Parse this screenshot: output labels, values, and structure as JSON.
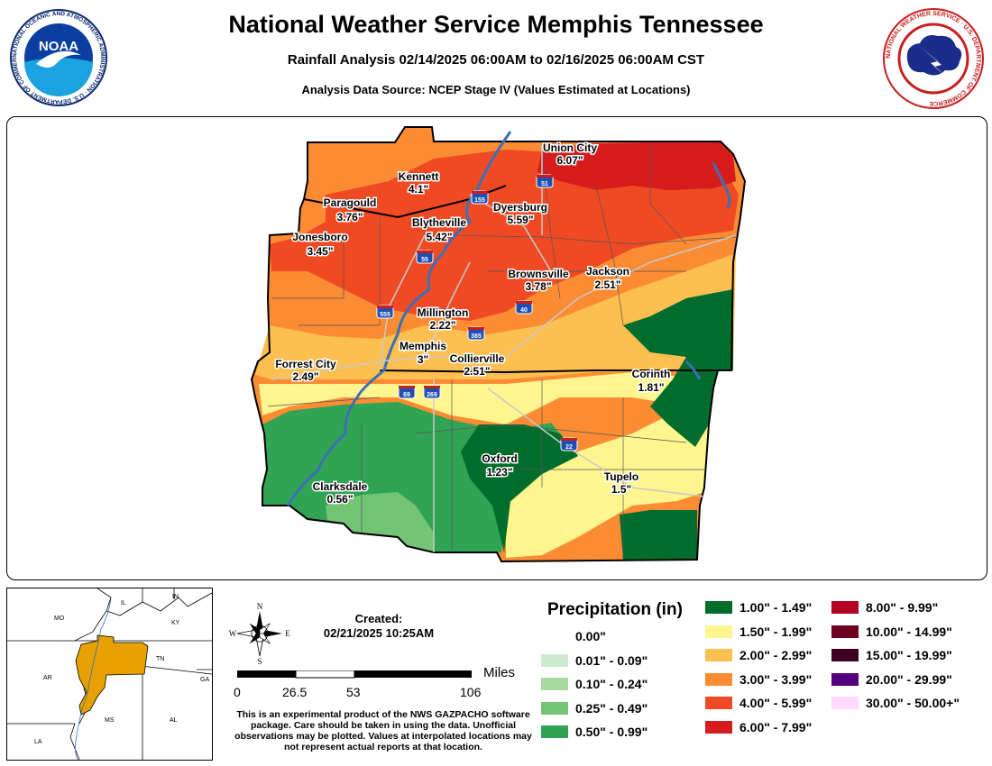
{
  "header": {
    "title": "National Weather Service Memphis Tennessee",
    "subtitle": "Rainfall Analysis 02/14/2025 06:00AM to 02/16/2025 06:00AM CST",
    "source": "Analysis Data Source: NCEP Stage IV (Values Estimated at Locations)"
  },
  "logos": {
    "noaa_text": "NOAA",
    "noaa_ring": "NATIONAL OCEANIC AND ATMOSPHERIC ADMINISTRATION · U.S. DEPARTMENT OF COMMERCE",
    "nws_ring": "NATIONAL WEATHER SERVICE · U.S. DEPARTMENT OF COMMERCE"
  },
  "cities": [
    {
      "name": "Union City",
      "value": "6.07\""
    },
    {
      "name": "Kennett",
      "value": "4.1\""
    },
    {
      "name": "Paragould",
      "value": "3.76\""
    },
    {
      "name": "Dyersburg",
      "value": "5.59\""
    },
    {
      "name": "Blytheville",
      "value": "5.42\""
    },
    {
      "name": "Jonesboro",
      "value": "3.45\""
    },
    {
      "name": "Brownsville",
      "value": "3.78\""
    },
    {
      "name": "Jackson",
      "value": "2.51\""
    },
    {
      "name": "Millington",
      "value": "2.22\""
    },
    {
      "name": "Memphis",
      "value": "3\""
    },
    {
      "name": "Collierville",
      "value": "2.51\""
    },
    {
      "name": "Forrest City",
      "value": "2.49\""
    },
    {
      "name": "Corinth",
      "value": "1.81\""
    },
    {
      "name": "Oxford",
      "value": "1.23\""
    },
    {
      "name": "Tupelo",
      "value": "1.5\""
    },
    {
      "name": "Clarksdale",
      "value": "0.56\""
    }
  ],
  "highways": [
    "155",
    "51",
    "55",
    "555",
    "40",
    "385",
    "69",
    "269",
    "22"
  ],
  "inset": {
    "states": [
      "MO",
      "IL",
      "IN",
      "KY",
      "TN",
      "AR",
      "MS",
      "AL",
      "GA",
      "LA"
    ]
  },
  "created": {
    "label": "Created:",
    "value": "02/21/2025 10:25AM"
  },
  "compass": {
    "n": "N",
    "s": "S",
    "e": "E",
    "w": "W"
  },
  "scale": {
    "unit": "Miles",
    "ticks": [
      "0",
      "26.5",
      "53",
      "106"
    ]
  },
  "disclaimer": "This is an experimental product of the NWS GAZPACHO software package. Care should be taken in using the data. Unofficial observations may be plotted. Values at interpolated locations may not represent actual reports at that location.",
  "legend": {
    "title": "Precipitation (in)",
    "items": [
      {
        "label": "0.00\"",
        "color": "#ffffff"
      },
      {
        "label": "0.01\" - 0.09\"",
        "color": "#cdeccd"
      },
      {
        "label": "0.10\" - 0.24\"",
        "color": "#a6d9a0"
      },
      {
        "label": "0.25\" - 0.49\"",
        "color": "#74c476"
      },
      {
        "label": "0.50\" - 0.99\"",
        "color": "#31a354"
      },
      {
        "label": "1.00\" - 1.49\"",
        "color": "#006d2c"
      },
      {
        "label": "1.50\" - 1.99\"",
        "color": "#fff58f"
      },
      {
        "label": "2.00\" - 2.99\"",
        "color": "#fdbf4f"
      },
      {
        "label": "3.00\" - 3.99\"",
        "color": "#fb8c34"
      },
      {
        "label": "4.00\" - 5.99\"",
        "color": "#f04a24"
      },
      {
        "label": "6.00\" - 7.99\"",
        "color": "#d61c1c"
      },
      {
        "label": "8.00\" - 9.99\"",
        "color": "#b30024"
      },
      {
        "label": "10.00\" - 14.99\"",
        "color": "#6e0020"
      },
      {
        "label": "15.00\" - 19.99\"",
        "color": "#3d0022"
      },
      {
        "label": "20.00\" - 29.99\"",
        "color": "#52007d"
      },
      {
        "label": "30.00\" - 50.00+\"",
        "color": "#ffd9ff"
      }
    ]
  },
  "colors": {
    "river": "#3d6fb5",
    "state_line": "#000000",
    "county_line": "#444444",
    "highway_shield": "#1f4fb4"
  }
}
